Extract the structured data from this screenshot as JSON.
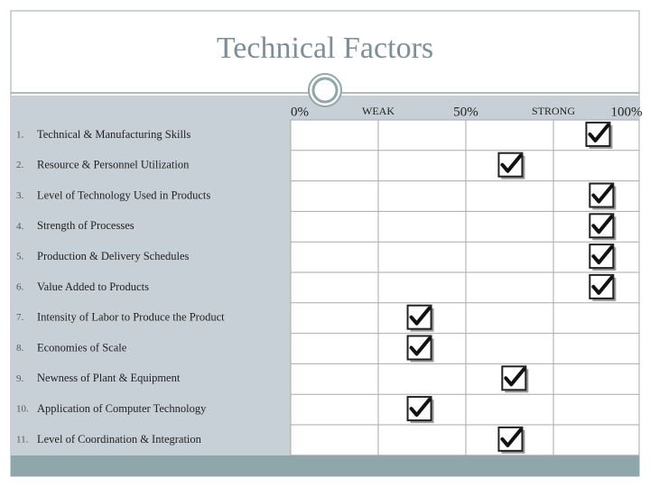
{
  "title": "Technical Factors",
  "scale": {
    "ticks": [
      {
        "value": 0,
        "label": "0%"
      },
      {
        "value": 25,
        "label": "WEAK"
      },
      {
        "value": 50,
        "label": "50%"
      },
      {
        "value": 75,
        "label": "STRONG"
      },
      {
        "value": 100,
        "label": "100%"
      }
    ]
  },
  "rows": [
    {
      "number": "1.",
      "label": "Technical & Manufacturing Skills",
      "rating": 88
    },
    {
      "number": "2.",
      "label": "Resource & Personnel Utilization",
      "rating": 63
    },
    {
      "number": "3.",
      "label": "Level of Technology Used in Products",
      "rating": 89
    },
    {
      "number": "4.",
      "label": "Strength of Processes",
      "rating": 89
    },
    {
      "number": "5.",
      "label": "Production & Delivery Schedules",
      "rating": 89
    },
    {
      "number": "6.",
      "label": "Value Added to Products",
      "rating": 89
    },
    {
      "number": "7.",
      "label": "Intensity of Labor to Produce the Product",
      "rating": 37
    },
    {
      "number": "8.",
      "label": "Economies of Scale",
      "rating": 37
    },
    {
      "number": "9.",
      "label": "Newness of Plant & Equipment",
      "rating": 64
    },
    {
      "number": "10.",
      "label": "Application of Computer Technology",
      "rating": 37
    },
    {
      "number": "11.",
      "label": "Level of Coordination & Integration",
      "rating": 63
    }
  ]
}
